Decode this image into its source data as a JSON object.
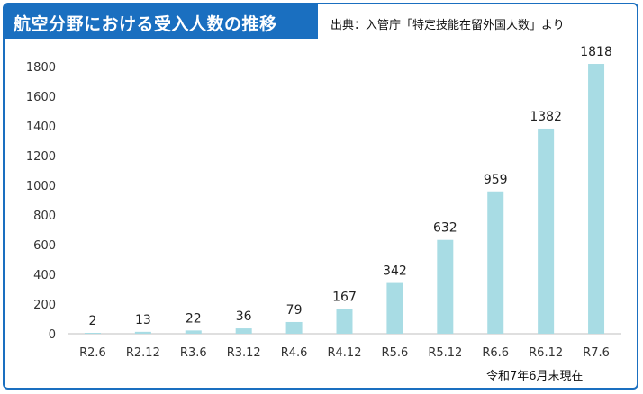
{
  "header": {
    "title": "航空分野における受入人数の推移",
    "source": "出典：入管庁「特定技能在留外国人数」より"
  },
  "footnote": "令和7年6月末現在",
  "colors": {
    "accent": "#1a6fc0",
    "bar": "#a8dce4",
    "grid": "#d9d9d9"
  },
  "chart_data": {
    "type": "bar",
    "categories": [
      "R2.6",
      "R2.12",
      "R3.6",
      "R3.12",
      "R4.6",
      "R4.12",
      "R5.6",
      "R5.12",
      "R6.6",
      "R6.12",
      "R7.6"
    ],
    "values": [
      2,
      13,
      22,
      36,
      79,
      167,
      342,
      632,
      959,
      1382,
      1818
    ],
    "yticks": [
      0,
      200,
      400,
      600,
      800,
      1000,
      1200,
      1400,
      1600,
      1800
    ],
    "ylim": [
      0,
      1800
    ],
    "grid": false,
    "data_labels": true
  }
}
